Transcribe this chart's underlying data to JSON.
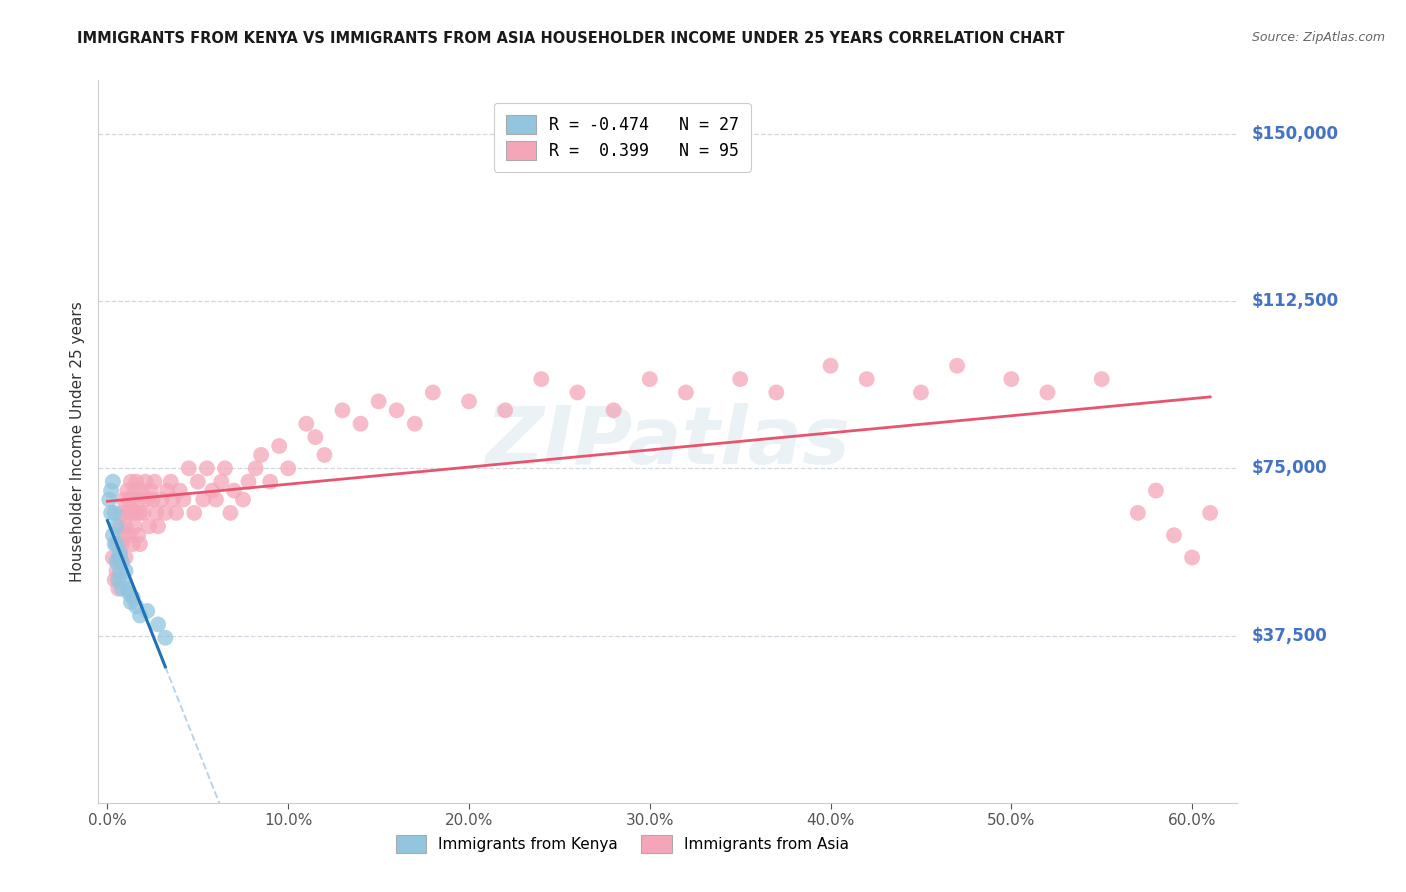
{
  "title": "IMMIGRANTS FROM KENYA VS IMMIGRANTS FROM ASIA HOUSEHOLDER INCOME UNDER 25 YEARS CORRELATION CHART",
  "source": "Source: ZipAtlas.com",
  "ylim": [
    0,
    162000
  ],
  "xlim": [
    -0.005,
    0.625
  ],
  "background_color": "#ffffff",
  "kenya_color": "#92c5de",
  "asia_color": "#f4a6b8",
  "kenya_line_color": "#2171b5",
  "asia_line_color": "#e8536e",
  "dashed_line_color": "#b8d4ea",
  "R_kenya": -0.474,
  "N_kenya": 27,
  "R_asia": 0.399,
  "N_asia": 95,
  "legend_R_kenya": "R = -0.474",
  "legend_N_kenya": "N = 27",
  "legend_R_asia": "R =  0.399",
  "legend_N_asia": "N = 95",
  "ylabel_text": "Householder Income Under 25 years",
  "ytick_vals": [
    37500,
    75000,
    112500,
    150000
  ],
  "ytick_labels": [
    "$37,500",
    "$75,000",
    "$112,500",
    "$150,000"
  ],
  "xtick_vals": [
    0.0,
    0.1,
    0.2,
    0.3,
    0.4,
    0.5,
    0.6
  ],
  "xtick_labels": [
    "0.0%",
    "10.0%",
    "20.0%",
    "30.0%",
    "40.0%",
    "50.0%",
    "60.0%"
  ],
  "watermark": "ZIPatlas",
  "bottom_legend_kenya": "Immigrants from Kenya",
  "bottom_legend_asia": "Immigrants from Asia",
  "kenya_x": [
    0.001,
    0.002,
    0.002,
    0.003,
    0.003,
    0.004,
    0.004,
    0.005,
    0.005,
    0.005,
    0.006,
    0.006,
    0.007,
    0.007,
    0.008,
    0.008,
    0.009,
    0.01,
    0.011,
    0.012,
    0.013,
    0.014,
    0.016,
    0.018,
    0.022,
    0.028,
    0.032
  ],
  "kenya_y": [
    68000,
    70000,
    65000,
    72000,
    60000,
    65000,
    58000,
    62000,
    58000,
    54000,
    55000,
    50000,
    56000,
    52000,
    54000,
    48000,
    50000,
    52000,
    48000,
    47000,
    45000,
    46000,
    44000,
    42000,
    43000,
    40000,
    37000
  ],
  "asia_x": [
    0.003,
    0.004,
    0.005,
    0.006,
    0.006,
    0.007,
    0.007,
    0.008,
    0.008,
    0.009,
    0.009,
    0.01,
    0.01,
    0.011,
    0.011,
    0.012,
    0.012,
    0.013,
    0.013,
    0.014,
    0.014,
    0.015,
    0.015,
    0.016,
    0.016,
    0.017,
    0.017,
    0.018,
    0.018,
    0.019,
    0.02,
    0.021,
    0.022,
    0.023,
    0.024,
    0.025,
    0.026,
    0.027,
    0.028,
    0.03,
    0.032,
    0.033,
    0.035,
    0.036,
    0.038,
    0.04,
    0.042,
    0.045,
    0.048,
    0.05,
    0.053,
    0.055,
    0.058,
    0.06,
    0.063,
    0.065,
    0.068,
    0.07,
    0.075,
    0.078,
    0.082,
    0.085,
    0.09,
    0.095,
    0.1,
    0.11,
    0.115,
    0.12,
    0.13,
    0.14,
    0.15,
    0.16,
    0.17,
    0.18,
    0.2,
    0.22,
    0.24,
    0.26,
    0.28,
    0.3,
    0.32,
    0.35,
    0.37,
    0.4,
    0.42,
    0.45,
    0.47,
    0.5,
    0.52,
    0.55,
    0.57,
    0.58,
    0.59,
    0.6,
    0.61
  ],
  "asia_y": [
    55000,
    50000,
    52000,
    48000,
    58000,
    55000,
    62000,
    58000,
    65000,
    60000,
    68000,
    55000,
    62000,
    65000,
    70000,
    60000,
    68000,
    65000,
    72000,
    58000,
    68000,
    62000,
    70000,
    65000,
    72000,
    60000,
    68000,
    65000,
    58000,
    70000,
    65000,
    72000,
    68000,
    62000,
    70000,
    68000,
    72000,
    65000,
    62000,
    68000,
    65000,
    70000,
    72000,
    68000,
    65000,
    70000,
    68000,
    75000,
    65000,
    72000,
    68000,
    75000,
    70000,
    68000,
    72000,
    75000,
    65000,
    70000,
    68000,
    72000,
    75000,
    78000,
    72000,
    80000,
    75000,
    85000,
    82000,
    78000,
    88000,
    85000,
    90000,
    88000,
    85000,
    92000,
    90000,
    88000,
    95000,
    92000,
    88000,
    95000,
    92000,
    95000,
    92000,
    98000,
    95000,
    92000,
    98000,
    95000,
    92000,
    95000,
    65000,
    70000,
    60000,
    55000,
    65000
  ]
}
